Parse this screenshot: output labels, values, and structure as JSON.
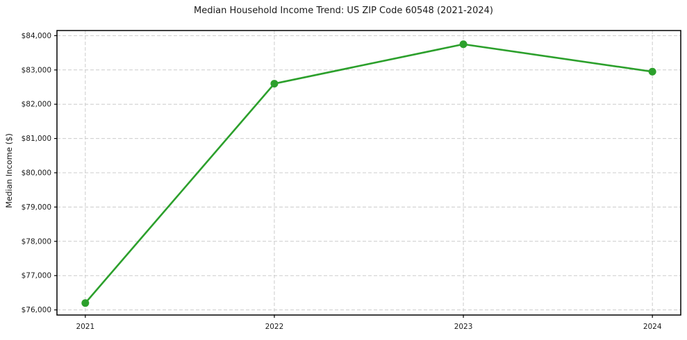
{
  "figure": {
    "background": "#ffffff"
  },
  "chart_data": {
    "type": "line",
    "title": "Median Household Income Trend: US ZIP Code 60548 (2021-2024)",
    "xlabel": "",
    "ylabel": "Median Income ($)",
    "x": [
      2021,
      2022,
      2023,
      2024
    ],
    "values": [
      76200,
      82600,
      83750,
      82950
    ],
    "xtick_labels": [
      "2021",
      "2022",
      "2023",
      "2024"
    ],
    "ytick_values": [
      76000,
      77000,
      78000,
      79000,
      80000,
      81000,
      82000,
      83000,
      84000
    ],
    "ytick_labels": [
      "$76,000",
      "$77,000",
      "$78,000",
      "$79,000",
      "$80,000",
      "$81,000",
      "$82,000",
      "$83,000",
      "$84,000"
    ],
    "xlim": [
      2020.85,
      2024.15
    ],
    "ylim": [
      75850,
      84150
    ],
    "grid": true,
    "legend_position": "none",
    "line_color": "#2ca02c",
    "marker_color": "#2ca02c",
    "marker": "o",
    "grid_color": "#cccccc",
    "axis_color": "#000000",
    "text_color": "#1a1a1a"
  }
}
